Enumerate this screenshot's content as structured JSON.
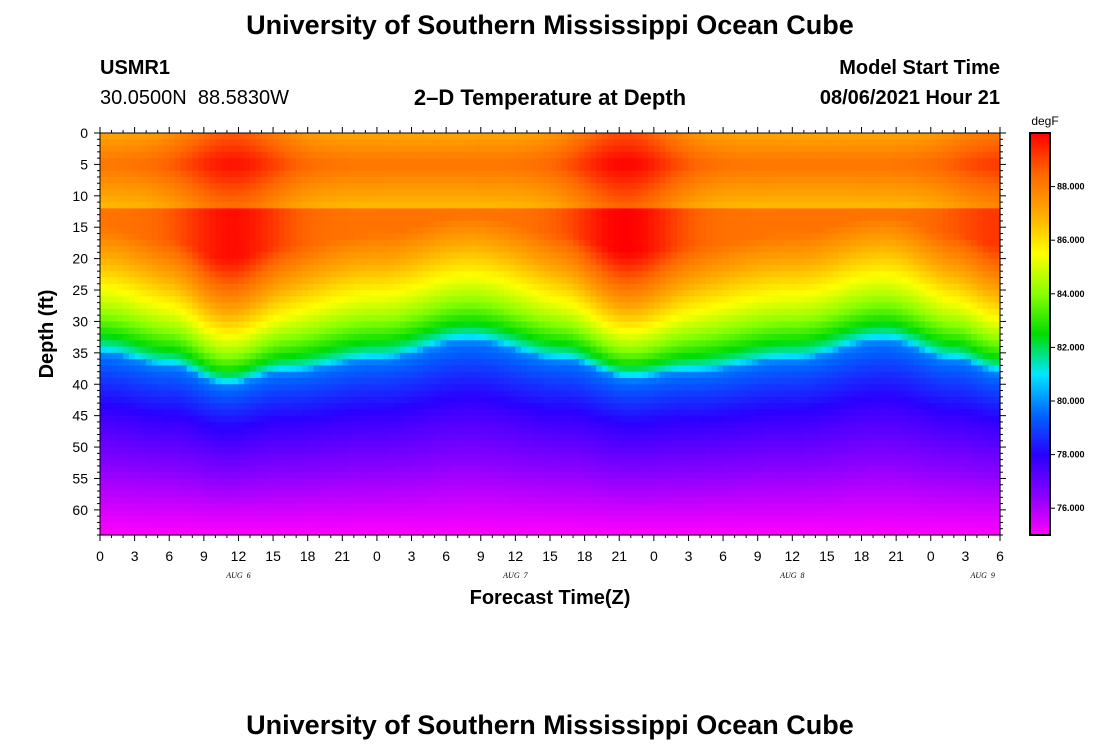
{
  "header": {
    "title_top": "University of Southern Mississippi Ocean Cube",
    "title_bottom": "University of Southern Mississippi Ocean Cube",
    "station_id": "USMR1",
    "coordinates": "30.0500N  88.5830W",
    "model_label": "Model Start Time",
    "model_time": "08/06/2021 Hour 21"
  },
  "colors": {
    "axis": "#000000",
    "scale": [
      "#ff00ff",
      "#8800ff",
      "#2a00ff",
      "#0066ff",
      "#00e6ff",
      "#00dd00",
      "#88ff00",
      "#ffff00",
      "#ffaa00",
      "#ff6600",
      "#ff0000"
    ]
  },
  "chart_data": {
    "type": "heatmap",
    "title": "2–D Temperature at Depth",
    "xlabel": "Forecast Time(Z)",
    "ylabel": "Depth (ft)",
    "unit": "degF",
    "ylim": [
      0,
      64
    ],
    "y_ticks": [
      "0",
      "5",
      "10",
      "15",
      "20",
      "25",
      "30",
      "35",
      "40",
      "45",
      "50",
      "55",
      "60"
    ],
    "x_range_hours": [
      0,
      78
    ],
    "x_ticks": [
      "0",
      "3",
      "6",
      "9",
      "12",
      "15",
      "18",
      "21",
      "0",
      "3",
      "6",
      "9",
      "12",
      "15",
      "18",
      "21",
      "0",
      "3",
      "6",
      "9",
      "12",
      "15",
      "18",
      "21",
      "0",
      "3",
      "6"
    ],
    "date_labels": [
      {
        "label": "AUG  6",
        "hour": 12
      },
      {
        "label": "AUG  7",
        "hour": 36
      },
      {
        "label": "AUG  8",
        "hour": 60
      },
      {
        "label": "AUG  9",
        "hour": 76.5
      }
    ],
    "colorbar_range": [
      75,
      90
    ],
    "colorbar_ticks": [
      "76.000",
      "78.000",
      "80.000",
      "82.000",
      "84.000",
      "86.000",
      "88.000"
    ],
    "colorbar_tick_values": [
      76,
      78,
      80,
      82,
      84,
      86,
      88
    ],
    "isotherm_depth_80F": [
      {
        "hour": 0,
        "depth": 35
      },
      {
        "hour": 6,
        "depth": 37
      },
      {
        "hour": 11,
        "depth": 40
      },
      {
        "hour": 16,
        "depth": 38
      },
      {
        "hour": 24,
        "depth": 36
      },
      {
        "hour": 32,
        "depth": 33
      },
      {
        "hour": 40,
        "depth": 36
      },
      {
        "hour": 46,
        "depth": 39
      },
      {
        "hour": 51,
        "depth": 38
      },
      {
        "hour": 60,
        "depth": 36
      },
      {
        "hour": 68,
        "depth": 33
      },
      {
        "hour": 74,
        "depth": 36
      },
      {
        "hour": 78,
        "depth": 38
      }
    ],
    "surface_maxima": [
      {
        "hour": 11.5,
        "value": 89.8
      },
      {
        "hour": 45.5,
        "value": 90.0
      },
      {
        "hour": 78,
        "value": 89.2
      }
    ]
  }
}
